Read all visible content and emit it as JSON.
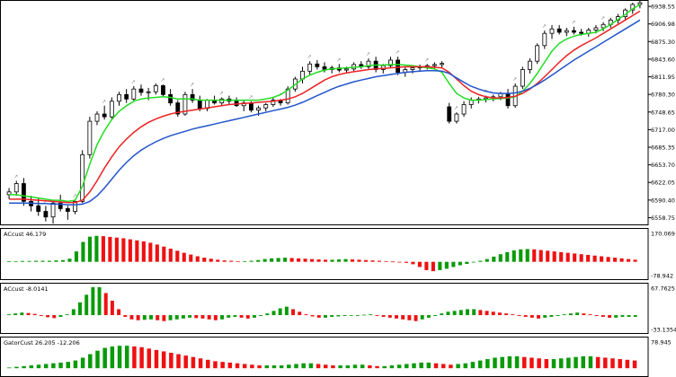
{
  "chart_data": [
    {
      "type": "candlestick",
      "panel": "main",
      "y_axis_ticks": [
        "6938.55",
        "6906.98",
        "6875.30",
        "6843.60",
        "6811.95",
        "6780.30",
        "6748.65",
        "6717.00",
        "6685.35",
        "6653.70",
        "6622.05",
        "6590.40",
        "6558.75"
      ],
      "ylim": [
        6545,
        6950
      ],
      "candles": [
        [
          6600,
          6612,
          6592,
          6605
        ],
        [
          6605,
          6625,
          6598,
          6620
        ],
        [
          6620,
          6630,
          6580,
          6588
        ],
        [
          6588,
          6598,
          6570,
          6580
        ],
        [
          6580,
          6595,
          6562,
          6570
        ],
        [
          6570,
          6580,
          6552,
          6560
        ],
        [
          6560,
          6590,
          6548,
          6585
        ],
        [
          6585,
          6600,
          6570,
          6575
        ],
        [
          6575,
          6580,
          6555,
          6570
        ],
        [
          6570,
          6590,
          6565,
          6588
        ],
        [
          6588,
          6680,
          6585,
          6672
        ],
        [
          6672,
          6740,
          6665,
          6732
        ],
        [
          6732,
          6750,
          6725,
          6745
        ],
        [
          6745,
          6760,
          6735,
          6740
        ],
        [
          6740,
          6775,
          6735,
          6768
        ],
        [
          6768,
          6785,
          6760,
          6780
        ],
        [
          6780,
          6790,
          6765,
          6772
        ],
        [
          6772,
          6795,
          6768,
          6790
        ],
        [
          6790,
          6798,
          6778,
          6784
        ],
        [
          6784,
          6792,
          6770,
          6785
        ],
        [
          6785,
          6800,
          6780,
          6796
        ],
        [
          6796,
          6798,
          6775,
          6780
        ],
        [
          6780,
          6790,
          6760,
          6765
        ],
        [
          6765,
          6770,
          6740,
          6745
        ],
        [
          6745,
          6785,
          6742,
          6780
        ],
        [
          6780,
          6790,
          6765,
          6770
        ],
        [
          6770,
          6778,
          6750,
          6755
        ],
        [
          6755,
          6772,
          6750,
          6770
        ],
        [
          6770,
          6778,
          6762,
          6765
        ],
        [
          6765,
          6775,
          6760,
          6772
        ],
        [
          6772,
          6778,
          6762,
          6768
        ],
        [
          6768,
          6775,
          6758,
          6760
        ],
        [
          6760,
          6770,
          6750,
          6765
        ],
        [
          6765,
          6768,
          6748,
          6752
        ],
        [
          6752,
          6760,
          6742,
          6756
        ],
        [
          6756,
          6765,
          6750,
          6762
        ],
        [
          6762,
          6775,
          6758,
          6770
        ],
        [
          6770,
          6772,
          6760,
          6765
        ],
        [
          6765,
          6795,
          6762,
          6790
        ],
        [
          6790,
          6812,
          6785,
          6808
        ],
        [
          6808,
          6830,
          6800,
          6822
        ],
        [
          6822,
          6840,
          6815,
          6835
        ],
        [
          6835,
          6842,
          6825,
          6830
        ],
        [
          6830,
          6838,
          6820,
          6825
        ],
        [
          6825,
          6832,
          6818,
          6828
        ],
        [
          6828,
          6835,
          6820,
          6824
        ],
        [
          6824,
          6830,
          6818,
          6826
        ],
        [
          6826,
          6838,
          6822,
          6834
        ],
        [
          6834,
          6840,
          6826,
          6830
        ],
        [
          6830,
          6845,
          6826,
          6840
        ],
        [
          6840,
          6848,
          6820,
          6825
        ],
        [
          6825,
          6835,
          6818,
          6832
        ],
        [
          6832,
          6848,
          6828,
          6842
        ],
        [
          6842,
          6848,
          6815,
          6820
        ],
        [
          6820,
          6830,
          6812,
          6825
        ],
        [
          6825,
          6832,
          6818,
          6828
        ],
        [
          6828,
          6834,
          6822,
          6830
        ],
        [
          6830,
          6835,
          6825,
          6832
        ],
        [
          6832,
          6838,
          6826,
          6834
        ],
        [
          6834,
          6840,
          6828,
          6836
        ],
        [
          6758,
          6765,
          6728,
          6732
        ],
        [
          6732,
          6748,
          6728,
          6745
        ],
        [
          6745,
          6768,
          6740,
          6762
        ],
        [
          6762,
          6775,
          6755,
          6770
        ],
        [
          6770,
          6776,
          6764,
          6772
        ],
        [
          6772,
          6778,
          6766,
          6774
        ],
        [
          6774,
          6780,
          6768,
          6776
        ],
        [
          6776,
          6785,
          6770,
          6782
        ],
        [
          6782,
          6790,
          6755,
          6760
        ],
        [
          6760,
          6800,
          6756,
          6795
        ],
        [
          6795,
          6830,
          6790,
          6825
        ],
        [
          6825,
          6845,
          6818,
          6840
        ],
        [
          6840,
          6872,
          6835,
          6868
        ],
        [
          6868,
          6895,
          6862,
          6890
        ],
        [
          6890,
          6905,
          6880,
          6898
        ],
        [
          6898,
          6905,
          6888,
          6892
        ],
        [
          6892,
          6900,
          6885,
          6895
        ],
        [
          6895,
          6902,
          6888,
          6892
        ],
        [
          6892,
          6898,
          6886,
          6890
        ],
        [
          6890,
          6900,
          6884,
          6896
        ],
        [
          6896,
          6905,
          6890,
          6900
        ],
        [
          6900,
          6910,
          6894,
          6906
        ],
        [
          6906,
          6918,
          6900,
          6914
        ],
        [
          6914,
          6925,
          6908,
          6920
        ],
        [
          6920,
          6935,
          6915,
          6932
        ],
        [
          6932,
          6945,
          6925,
          6942
        ],
        [
          6942,
          6950,
          6935,
          6945
        ]
      ],
      "series": [
        {
          "color": "#22dd22",
          "values": [
            6600,
            6600,
            6598,
            6596,
            6594,
            6592,
            6590,
            6590,
            6588,
            6590,
            6615,
            6655,
            6690,
            6715,
            6735,
            6750,
            6760,
            6768,
            6772,
            6774,
            6775,
            6776,
            6775,
            6772,
            6772,
            6772,
            6770,
            6770,
            6770,
            6770,
            6770,
            6770,
            6770,
            6770,
            6770,
            6772,
            6775,
            6780,
            6788,
            6798,
            6808,
            6815,
            6820,
            6824,
            6826,
            6827,
            6828,
            6829,
            6830,
            6832,
            6833,
            6833,
            6834,
            6834,
            6833,
            6832,
            6830,
            6828,
            6826,
            6820,
            6800,
            6782,
            6774,
            6770,
            6770,
            6771,
            6772,
            6773,
            6774,
            6776,
            6786,
            6800,
            6818,
            6838,
            6858,
            6872,
            6880,
            6885,
            6888,
            6890,
            6892,
            6898,
            6906,
            6915,
            6924,
            6934,
            6942
          ]
        },
        {
          "color": "#ee2222",
          "values": [
            6592,
            6592,
            6592,
            6591,
            6590,
            6589,
            6588,
            6587,
            6586,
            6586,
            6590,
            6605,
            6625,
            6648,
            6668,
            6686,
            6700,
            6712,
            6722,
            6730,
            6736,
            6741,
            6745,
            6748,
            6750,
            6752,
            6754,
            6756,
            6758,
            6760,
            6762,
            6763,
            6764,
            6765,
            6766,
            6767,
            6768,
            6770,
            6772,
            6776,
            6782,
            6790,
            6798,
            6806,
            6812,
            6816,
            6819,
            6821,
            6823,
            6825,
            6826,
            6827,
            6828,
            6829,
            6830,
            6830,
            6830,
            6830,
            6829,
            6828,
            6820,
            6808,
            6796,
            6786,
            6780,
            6776,
            6774,
            6774,
            6775,
            6777,
            6782,
            6790,
            6800,
            6812,
            6825,
            6838,
            6850,
            6860,
            6868,
            6875,
            6882,
            6890,
            6898,
            6906,
            6914,
            6922,
            6930
          ]
        },
        {
          "color": "#2255cc",
          "values": [
            6585,
            6585,
            6585,
            6585,
            6584,
            6584,
            6583,
            6583,
            6582,
            6582,
            6583,
            6588,
            6598,
            6612,
            6628,
            6644,
            6658,
            6670,
            6680,
            6688,
            6695,
            6701,
            6706,
            6710,
            6714,
            6718,
            6721,
            6724,
            6727,
            6730,
            6733,
            6736,
            6739,
            6742,
            6745,
            6748,
            6751,
            6754,
            6757,
            6761,
            6766,
            6772,
            6778,
            6784,
            6790,
            6795,
            6799,
            6803,
            6806,
            6809,
            6812,
            6814,
            6816,
            6818,
            6820,
            6821,
            6822,
            6823,
            6823,
            6822,
            6818,
            6810,
            6802,
            6795,
            6790,
            6786,
            6783,
            6782,
            6782,
            6783,
            6786,
            6791,
            6798,
            6806,
            6815,
            6824,
            6833,
            6842,
            6850,
            6858,
            6866,
            6874,
            6882,
            6890,
            6898,
            6906,
            6914
          ]
        }
      ]
    },
    {
      "type": "histogram",
      "panel": "ac1",
      "label": "ACcust 46.179",
      "y_axis_ticks": [
        "170.069",
        "-78.942"
      ],
      "ylim": [
        -95,
        185
      ],
      "values": [
        3,
        4,
        5,
        5,
        6,
        6,
        6,
        8,
        10,
        18,
        60,
        115,
        145,
        150,
        148,
        144,
        140,
        136,
        130,
        124,
        118,
        110,
        100,
        88,
        76,
        64,
        52,
        42,
        32,
        24,
        18,
        12,
        8,
        6,
        4,
        4,
        6,
        10,
        16,
        20,
        22,
        24,
        22,
        20,
        18,
        16,
        14,
        12,
        12,
        14,
        16,
        14,
        12,
        10,
        8,
        6,
        4,
        2,
        -2,
        -6,
        -14,
        -30,
        -48,
        -54,
        -48,
        -40,
        -30,
        -20,
        -12,
        -4,
        6,
        16,
        30,
        44,
        56,
        66,
        72,
        74,
        72,
        68,
        64,
        60,
        56,
        52,
        48,
        44,
        40,
        36,
        32,
        28,
        24,
        20,
        16,
        12
      ],
      "colors": "g/r by direction"
    },
    {
      "type": "histogram",
      "panel": "ac2",
      "label": "ACcust -8.0141",
      "y_axis_ticks": [
        "67.7625",
        "-33.1354"
      ],
      "ylim": [
        -40,
        72
      ],
      "values": [
        2,
        4,
        6,
        5,
        3,
        -2,
        -5,
        -7,
        -4,
        2,
        14,
        30,
        48,
        66,
        66,
        52,
        34,
        14,
        -4,
        -10,
        -12,
        -11,
        -10,
        -12,
        -14,
        -12,
        -10,
        -8,
        -6,
        -7,
        -8,
        -10,
        -12,
        -10,
        -6,
        -4,
        -6,
        -8,
        -6,
        -2,
        4,
        10,
        16,
        20,
        14,
        8,
        2,
        -3,
        -6,
        -6,
        -4,
        -3,
        -2,
        -1,
        0,
        1,
        2,
        -2,
        -4,
        -6,
        -8,
        -10,
        -12,
        -14,
        -10,
        -6,
        -2,
        4,
        8,
        10,
        12,
        14,
        14,
        12,
        10,
        8,
        6,
        4,
        2,
        -2,
        -4,
        -6,
        -8,
        -6,
        -4,
        -2,
        2,
        4,
        6,
        4,
        2,
        -2,
        -4,
        -6,
        -6,
        -4,
        -4,
        -4
      ],
      "colors": "g/r by direction"
    },
    {
      "type": "histogram",
      "panel": "gator",
      "label": "GatorCust 26.205 -12.206",
      "y_axis_ticks": [
        "78.945"
      ],
      "ylim": [
        -20,
        85
      ],
      "values": [
        2,
        4,
        6,
        8,
        10,
        12,
        14,
        16,
        18,
        22,
        30,
        40,
        50,
        58,
        62,
        64,
        64,
        62,
        60,
        56,
        52,
        48,
        44,
        40,
        36,
        32,
        28,
        24,
        20,
        18,
        16,
        14,
        12,
        10,
        8,
        8,
        8,
        8,
        10,
        12,
        14,
        14,
        12,
        10,
        8,
        8,
        8,
        10,
        10,
        8,
        6,
        6,
        8,
        10,
        12,
        14,
        16,
        16,
        14,
        12,
        10,
        12,
        14,
        18,
        22,
        26,
        30,
        32,
        34,
        34,
        32,
        30,
        28,
        26,
        26,
        28,
        30,
        32,
        34,
        34,
        32,
        30,
        28,
        26,
        24,
        22
      ],
      "colors": "g/r by direction"
    }
  ]
}
